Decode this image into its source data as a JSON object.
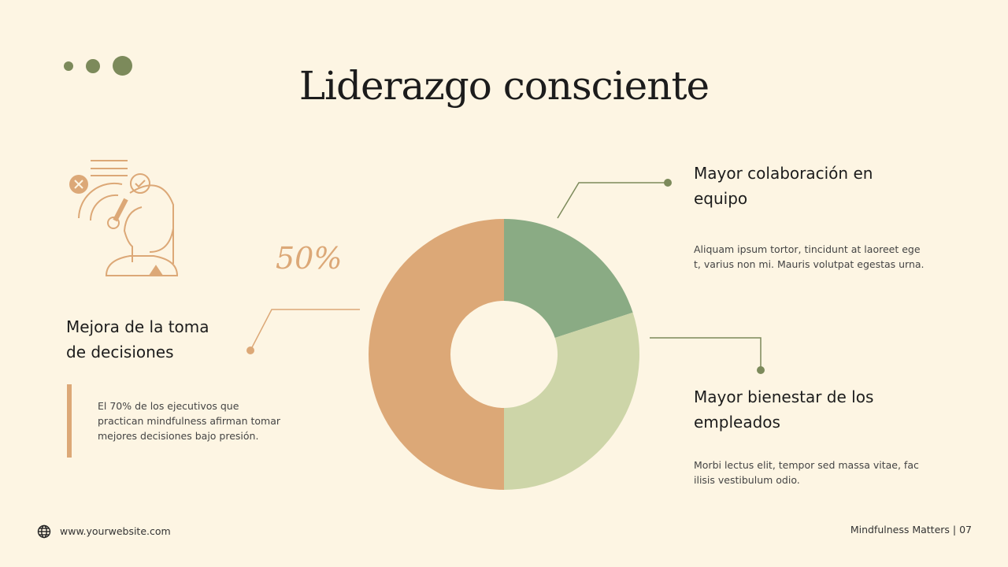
{
  "slide": {
    "title": "Liderazgo consciente",
    "footer_website": "www.yourwebsite.com",
    "footer_brand": "Mindfulness Matters | 07"
  },
  "colors": {
    "background": "#fdf5e3",
    "orange": "#dca877",
    "dark_green": "#8aab84",
    "light_green": "#cdd5a8",
    "accent_dots": "#7c8a5b"
  },
  "icons": {
    "illustration": "decision-making-person-icon",
    "footer": "globe-icon"
  },
  "callouts": [
    {
      "heading": [
        "Mejora de la toma",
        "de decisiones"
      ],
      "body": [
        "El 70% de los ejecutivos que",
        "practican mindfulness afirman tomar",
        "mejores decisiones bajo presión."
      ]
    },
    {
      "heading": [
        "Mayor colaboración en",
        "equipo"
      ],
      "body": [
        "Aliquam ipsum tortor, tincidunt at laoreet ege",
        "t, varius non mi. Mauris volutpat egestas urna."
      ]
    },
    {
      "heading": [
        "Mayor bienestar de los",
        "empleados"
      ],
      "body": [
        "Morbi lectus elit, tempor sed massa vitae, fac",
        "ilisis vestibulum odio."
      ]
    }
  ],
  "chart_data": {
    "type": "pie",
    "donut": true,
    "categories": [
      "Mayor colaboración en equipo",
      "Mayor bienestar de los empleados",
      "Mejora de la toma de decisiones"
    ],
    "values": [
      20,
      30,
      50
    ],
    "colors": [
      "#8aab84",
      "#cdd5a8",
      "#dca877"
    ],
    "data_labels": [
      "",
      "",
      "50%"
    ]
  }
}
